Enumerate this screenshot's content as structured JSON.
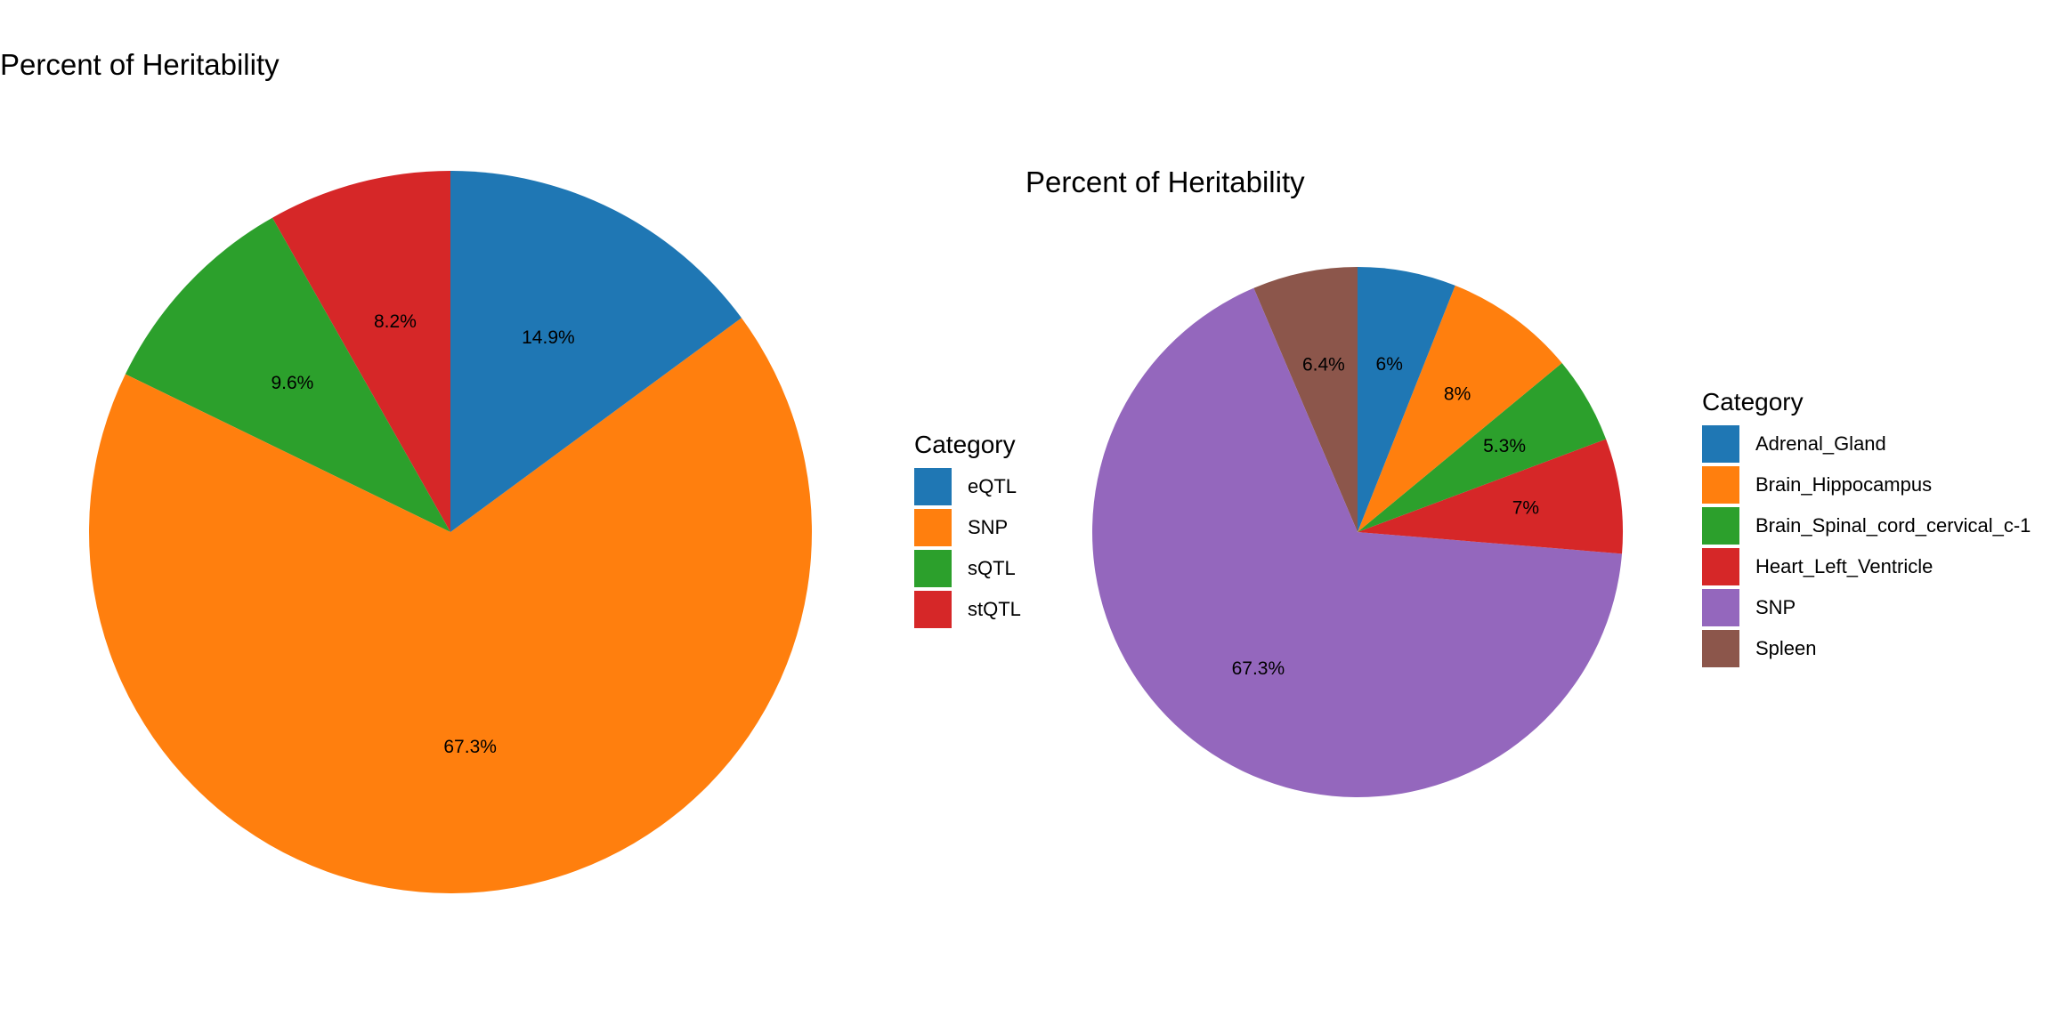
{
  "chart_data": [
    {
      "type": "pie",
      "title": "Percent of Heritability",
      "legend_title": "Category",
      "legend_position": "right",
      "categories": [
        "eQTL",
        "SNP",
        "sQTL",
        "stQTL"
      ],
      "values": [
        14.9,
        67.3,
        9.6,
        8.2
      ],
      "labels": [
        "14.9%",
        "67.3%",
        "9.6%",
        "8.2%"
      ],
      "colors": [
        "#1f77b4",
        "#ff7f0e",
        "#2ca02c",
        "#d62728"
      ],
      "slice_order": [
        3,
        2,
        1,
        0
      ]
    },
    {
      "type": "pie",
      "title": "Percent of Heritability",
      "legend_title": "Category",
      "legend_position": "right",
      "categories": [
        "Adrenal_Gland",
        "Brain_Hippocampus",
        "Brain_Spinal_cord_cervical_c-1",
        "Heart_Left_Ventricle",
        "SNP",
        "Spleen"
      ],
      "values": [
        6.0,
        8.0,
        5.3,
        7.0,
        67.3,
        6.4
      ],
      "labels": [
        "6%",
        "8%",
        "5.3%",
        "7%",
        "67.3%",
        "6.4%"
      ],
      "colors": [
        "#1f77b4",
        "#ff7f0e",
        "#2ca02c",
        "#d62728",
        "#9467bd",
        "#8c564b"
      ],
      "slice_order": [
        5,
        4,
        3,
        2,
        1,
        0
      ]
    }
  ]
}
